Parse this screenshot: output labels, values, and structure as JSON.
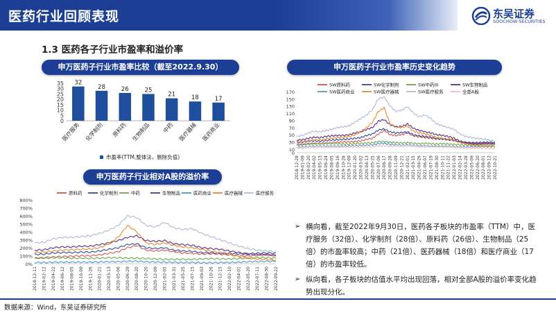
{
  "header": {
    "title": "医药行业回顾表现"
  },
  "logo": {
    "cn": "东吴证券",
    "en": "SOOCHOW SECURITIES"
  },
  "section": {
    "title": "1.3 医药各子行业市盈率和溢价率"
  },
  "colors": {
    "brand": "#1c3f95",
    "bar": "#1f4e9c"
  },
  "charts": {
    "pe_bar": {
      "title": "申万医药子行业市盈率比较（截至2022.9.30）",
      "legend": "市盈率(TTM,整体法，剔除负值)"
    },
    "pe_history": {
      "title": "申万医药子行业市盈率历史变化趋势"
    },
    "premium": {
      "title": "申万医药子行业相对A股的溢价率"
    }
  },
  "chart_data": [
    {
      "type": "bar",
      "title": "申万医药子行业市盈率比较（截至2022.9.30）",
      "categories": [
        "医疗服务",
        "化学制剂",
        "原料药",
        "生物制品",
        "中药",
        "医疗器械",
        "医药商业"
      ],
      "values": [
        32,
        28,
        26,
        25,
        21,
        18,
        17
      ],
      "ylim": [
        0,
        35
      ],
      "yticks": [
        0,
        5,
        10,
        15,
        20,
        25,
        30,
        35
      ],
      "legend": [
        {
          "name": "市盈率(TTM,整体法，剔除负值)",
          "color": "#1f4e9c"
        }
      ],
      "legend_position": "bottom"
    },
    {
      "type": "line",
      "title": "申万医药子行业市盈率历史变化趋势",
      "ylim": [
        0,
        170
      ],
      "yticks": [
        0,
        10,
        30,
        50,
        70,
        90,
        110,
        130,
        150,
        170
      ],
      "x": [
        "2018-12-28",
        "2019-01-09",
        "2019-02-20",
        "2019-04-02",
        "2019-05-13",
        "2019-06-24",
        "2019-08-05",
        "2019-09-16",
        "2019-10-28",
        "2019-12-09",
        "2020-01-20",
        "2020-03-02",
        "2020-04-13",
        "2020-05-25",
        "2020-07-06",
        "2020-08-17",
        "2020-09-28",
        "2020-11-09",
        "2020-12-21",
        "2021-02-01",
        "2021-03-15",
        "2021-04-26",
        "2021-06-07",
        "2021-07-19",
        "2021-08-30",
        "2021-10-11",
        "2021-11-22",
        "2022-01-03",
        "2022-02-14",
        "2022-03-28",
        "2022-05-09",
        "2022-06-20",
        "2022-08-01",
        "2022-09-12",
        "2022-10-21"
      ],
      "series": [
        {
          "name": "SW原料药",
          "color": "#d9534f",
          "values": [
            22,
            23,
            25,
            26,
            26,
            27,
            28,
            29,
            30,
            30,
            31,
            33,
            37,
            40,
            52,
            62,
            50,
            48,
            50,
            55,
            47,
            44,
            42,
            40,
            38,
            38,
            37,
            35,
            30,
            27,
            25,
            25,
            26,
            26,
            24
          ]
        },
        {
          "name": "SW化学制剂",
          "color": "#2e4a9e",
          "values": [
            28,
            29,
            32,
            33,
            32,
            34,
            35,
            36,
            37,
            38,
            40,
            42,
            48,
            52,
            63,
            66,
            58,
            55,
            56,
            58,
            50,
            47,
            45,
            43,
            40,
            38,
            36,
            34,
            30,
            28,
            28,
            28,
            29,
            29,
            28
          ]
        },
        {
          "name": "SW中药III",
          "color": "#6aa84f",
          "values": [
            22,
            22,
            24,
            25,
            24,
            25,
            25,
            25,
            24,
            24,
            25,
            26,
            27,
            28,
            31,
            31,
            29,
            28,
            27,
            28,
            26,
            25,
            26,
            25,
            24,
            25,
            24,
            23,
            22,
            21,
            21,
            21,
            22,
            21,
            21
          ]
        },
        {
          "name": "SW生物制品",
          "color": "#5b2c83",
          "values": [
            35,
            36,
            40,
            43,
            42,
            45,
            47,
            48,
            48,
            50,
            55,
            58,
            65,
            70,
            88,
            92,
            78,
            72,
            73,
            80,
            68,
            62,
            58,
            55,
            50,
            48,
            45,
            40,
            32,
            28,
            26,
            25,
            26,
            26,
            25
          ]
        },
        {
          "name": "SW医药商业",
          "color": "#4a98c9",
          "values": [
            15,
            16,
            17,
            18,
            18,
            18,
            18,
            18,
            18,
            19,
            19,
            20,
            21,
            22,
            25,
            26,
            23,
            22,
            21,
            22,
            20,
            19,
            19,
            18,
            18,
            18,
            18,
            17,
            16,
            16,
            16,
            16,
            17,
            17,
            17
          ]
        },
        {
          "name": "SW医疗器械",
          "color": "#e8892e",
          "values": [
            30,
            31,
            34,
            36,
            36,
            38,
            40,
            42,
            43,
            45,
            50,
            58,
            70,
            85,
            115,
            125,
            80,
            72,
            70,
            74,
            60,
            55,
            52,
            48,
            42,
            40,
            38,
            35,
            28,
            24,
            21,
            20,
            20,
            19,
            18
          ]
        },
        {
          "name": "SW医疗服务",
          "color": "#a9b9d6",
          "values": [
            45,
            48,
            55,
            60,
            58,
            62,
            65,
            70,
            72,
            75,
            85,
            95,
            105,
            120,
            150,
            155,
            130,
            115,
            118,
            128,
            110,
            100,
            105,
            95,
            80,
            75,
            70,
            65,
            52,
            45,
            42,
            40,
            38,
            35,
            32
          ]
        },
        {
          "name": "全部A股",
          "color": "#f2b8b8",
          "values": [
            13,
            13,
            14,
            15,
            15,
            15,
            15,
            15,
            16,
            16,
            16,
            16,
            17,
            17,
            19,
            19,
            18,
            18,
            18,
            19,
            18,
            17,
            17,
            17,
            16,
            16,
            16,
            15,
            14,
            13,
            13,
            13,
            13,
            12,
            12
          ]
        }
      ],
      "legend_position": "top"
    },
    {
      "type": "line",
      "title": "申万医药子行业相对A股的溢价率",
      "ylim": [
        0,
        800
      ],
      "yticks": [
        "0%",
        "100%",
        "200%",
        "300%",
        "400%",
        "500%",
        "600%",
        "700%",
        "800%"
      ],
      "x": [
        "2018-12-11",
        "2019-02-12",
        "2019-04-22",
        "2019-06-12",
        "2019-08-05",
        "2019-10-09",
        "2019-11-26",
        "2020-01-21",
        "2020-03-13",
        "2020-05-06",
        "2020-06-29",
        "2020-08-20",
        "2020-10-20",
        "2020-12-09",
        "2021-02-05",
        "2021-03-31",
        "2021-05-25",
        "2021-07-15",
        "2021-09-03",
        "2021-10-26",
        "2021-12-15",
        "2022-02-10",
        "2022-04-01",
        "2022-05-20",
        "2022-07-11",
        "2022-08-30",
        "2022-09-22"
      ],
      "series": [
        {
          "name": "原料药",
          "color": "#d9534f",
          "values": [
            70,
            75,
            85,
            90,
            95,
            100,
            100,
            110,
            130,
            150,
            200,
            230,
            170,
            160,
            170,
            150,
            135,
            130,
            120,
            125,
            120,
            110,
            100,
            100,
            105,
            110,
            100
          ]
        },
        {
          "name": "化学制剂",
          "color": "#2e4a9e",
          "values": [
            115,
            120,
            135,
            140,
            140,
            145,
            145,
            160,
            180,
            200,
            240,
            250,
            200,
            190,
            200,
            170,
            160,
            155,
            140,
            140,
            130,
            130,
            125,
            125,
            130,
            135,
            130
          ]
        },
        {
          "name": "中药",
          "color": "#6aa84f",
          "values": [
            70,
            70,
            75,
            75,
            70,
            70,
            68,
            70,
            75,
            75,
            70,
            70,
            65,
            60,
            55,
            55,
            55,
            55,
            60,
            65,
            60,
            60,
            65,
            70,
            75,
            75,
            70
          ]
        },
        {
          "name": "生物制品",
          "color": "#5b2c83",
          "values": [
            170,
            175,
            200,
            210,
            210,
            220,
            220,
            240,
            260,
            290,
            330,
            350,
            290,
            280,
            290,
            250,
            240,
            230,
            200,
            190,
            180,
            160,
            140,
            120,
            115,
            115,
            105
          ]
        },
        {
          "name": "医药商业",
          "color": "#4a98c9",
          "values": [
            15,
            15,
            18,
            20,
            20,
            20,
            20,
            22,
            25,
            25,
            30,
            32,
            25,
            22,
            20,
            18,
            15,
            15,
            12,
            12,
            15,
            15,
            20,
            25,
            28,
            30,
            30
          ]
        },
        {
          "name": "医疗器械",
          "color": "#e8892e",
          "values": [
            140,
            145,
            160,
            170,
            175,
            180,
            185,
            200,
            250,
            330,
            480,
            400,
            260,
            240,
            260,
            230,
            210,
            200,
            180,
            160,
            140,
            120,
            90,
            70,
            60,
            55,
            45
          ]
        },
        {
          "name": "医疗服务",
          "color": "#a9b9d6",
          "values": [
            260,
            270,
            310,
            330,
            330,
            340,
            350,
            380,
            420,
            480,
            600,
            580,
            480,
            460,
            520,
            450,
            430,
            440,
            380,
            340,
            300,
            260,
            220,
            190,
            170,
            160,
            150
          ]
        }
      ],
      "legend_position": "top"
    }
  ],
  "bullets": [
    {
      "arrow": "➢",
      "text": "横向看，截至2022年9月30日，医药各子板块的市盈率（TTM）中，医疗服务（32倍）、化学制剂（28倍）、原料药（26倍）、生物制品（25倍）的市盈率较高；中药（21倍）、医药器械（18倍）和医疗商业（17倍）的市盈率较低。"
    },
    {
      "arrow": "➢",
      "text": "纵向看，各子板块的估值水平均出现回落，相对全部A股的溢价率变化趋势出现分化。"
    }
  ],
  "footer": {
    "source": "数据来源：Wind，东吴证券研究所"
  }
}
